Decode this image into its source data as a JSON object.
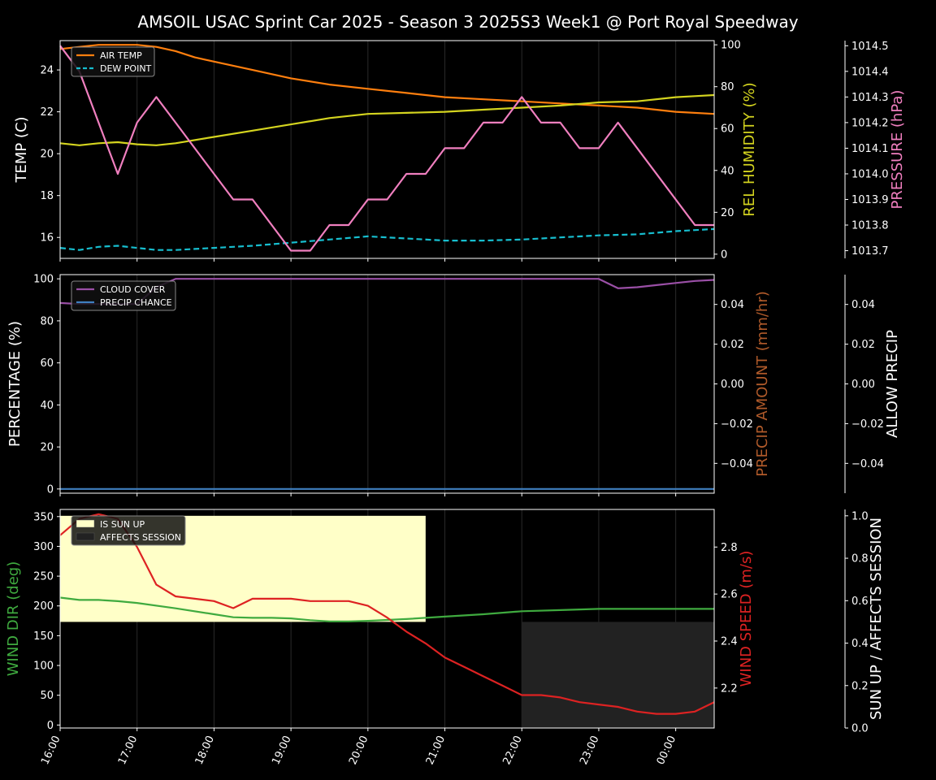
{
  "title": "AMSOIL USAC Sprint Car 2025 - Season 3 2025S3 Week1 @ Port Royal Speedway",
  "colors": {
    "background": "#000000",
    "axis": "#ffffff",
    "air_temp": "#ff7f0e",
    "dew_point": "#17becf",
    "humidity": "#d4d41f",
    "pressure": "#f07fbf",
    "cloud_cover": "#9a4fa6",
    "precip_chance": "#3f7fc0",
    "precip_amount_label": "#b05a2a",
    "wind_dir": "#3faa3f",
    "wind_speed": "#dd2222",
    "sun_up": "#ffffc8",
    "affects_session": "#222222"
  },
  "chart_data": [
    {
      "type": "line",
      "panel": "temperature",
      "x_ticks": [
        "16:00",
        "17:00",
        "18:00",
        "19:00",
        "20:00",
        "21:00",
        "22:00",
        "23:00",
        "00:00"
      ],
      "x_range": [
        0,
        8.5
      ],
      "y_left": {
        "label": "TEMP (C)",
        "range": [
          15,
          25.4
        ],
        "ticks": [
          16,
          18,
          20,
          22,
          24
        ]
      },
      "y_right": {
        "label": "REL HUMIDITY (%)",
        "range": [
          -2,
          102
        ],
        "ticks": [
          0,
          20,
          40,
          60,
          80,
          100
        ]
      },
      "y_right2": {
        "label": "PRESSURE (hPa)",
        "range": [
          1013.67,
          1014.52
        ],
        "ticks": [
          "1013.7",
          "1013.8",
          "1013.9",
          "1014.0",
          "1014.1",
          "1014.2",
          "1014.3",
          "1014.4",
          "1014.5"
        ]
      },
      "legend": {
        "position": "top-left",
        "entries": [
          "AIR TEMP",
          "DEW POINT"
        ]
      },
      "series": [
        {
          "name": "AIR TEMP",
          "axis": "left",
          "style": "solid",
          "color": "air_temp",
          "x": [
            0,
            0.25,
            0.5,
            0.75,
            1,
            1.25,
            1.5,
            1.75,
            2,
            2.5,
            3,
            3.5,
            4,
            4.5,
            5,
            5.5,
            6,
            6.5,
            7,
            7.5,
            8,
            8.5
          ],
          "y": [
            25.0,
            25.1,
            25.2,
            25.2,
            25.2,
            25.1,
            24.9,
            24.6,
            24.4,
            24.0,
            23.6,
            23.3,
            23.1,
            22.9,
            22.7,
            22.6,
            22.5,
            22.4,
            22.3,
            22.2,
            22.0,
            21.9
          ]
        },
        {
          "name": "DEW POINT",
          "axis": "left",
          "style": "dashed",
          "color": "dew_point",
          "x": [
            0,
            0.25,
            0.5,
            0.75,
            1,
            1.25,
            1.5,
            1.75,
            2,
            2.5,
            3,
            3.5,
            4,
            4.5,
            5,
            5.5,
            6,
            6.5,
            7,
            7.5,
            8,
            8.5
          ],
          "y": [
            15.5,
            15.4,
            15.55,
            15.6,
            15.5,
            15.4,
            15.4,
            15.45,
            15.5,
            15.6,
            15.75,
            15.9,
            16.05,
            15.95,
            15.85,
            15.85,
            15.9,
            16.0,
            16.1,
            16.15,
            16.3,
            16.4
          ]
        },
        {
          "name": "REL HUMIDITY",
          "axis": "right",
          "style": "solid",
          "color": "humidity",
          "x": [
            0,
            0.25,
            0.5,
            0.75,
            1,
            1.25,
            1.5,
            2,
            2.5,
            3,
            3.5,
            4,
            4.5,
            5,
            5.5,
            6,
            6.5,
            7,
            7.5,
            8,
            8.25,
            8.5
          ],
          "y": [
            53,
            52,
            53,
            53.5,
            52.5,
            52,
            53,
            56,
            59,
            62,
            65,
            67,
            67.5,
            68,
            69,
            70,
            71,
            72.5,
            73,
            75,
            75.5,
            76
          ]
        },
        {
          "name": "PRESSURE",
          "axis": "right2",
          "style": "solid",
          "color": "pressure",
          "x": [
            0,
            0.25,
            0.75,
            1,
            1.25,
            1.5,
            1.75,
            2,
            2.25,
            2.5,
            3,
            3.25,
            3.5,
            3.75,
            4,
            4.25,
            4.5,
            4.75,
            5,
            5.25,
            5.5,
            5.75,
            6,
            6.25,
            6.5,
            6.75,
            7,
            7.25,
            8.25,
            8.5
          ],
          "y": [
            1014.5,
            1014.4,
            1014.0,
            1014.2,
            1014.3,
            1014.2,
            1014.1,
            1014.0,
            1013.9,
            1013.9,
            1013.7,
            1013.7,
            1013.8,
            1013.8,
            1013.9,
            1013.9,
            1014.0,
            1014.0,
            1014.1,
            1014.1,
            1014.2,
            1014.2,
            1014.3,
            1014.2,
            1014.2,
            1014.1,
            1014.1,
            1014.2,
            1013.8,
            1013.8
          ]
        }
      ]
    },
    {
      "type": "line",
      "panel": "clouds-precip",
      "x_range": [
        0,
        8.5
      ],
      "y_left": {
        "label": "PERCENTAGE (%)",
        "range": [
          -2,
          102
        ],
        "ticks": [
          0,
          20,
          40,
          60,
          80,
          100
        ]
      },
      "y_right": {
        "label": "PRECIP AMOUNT (mm/hr)",
        "range": [
          -0.055,
          0.055
        ],
        "ticks": [
          "−0.04",
          "−0.02",
          "0.00",
          "0.02",
          "0.04"
        ]
      },
      "y_right2": {
        "label": "ALLOW PRECIP",
        "range": [
          -0.055,
          0.055
        ],
        "ticks": [
          "−0.04",
          "−0.02",
          "0.00",
          "0.02",
          "0.04"
        ]
      },
      "legend": {
        "position": "top-left",
        "entries": [
          "CLOUD COVER",
          "PRECIP CHANCE"
        ]
      },
      "series": [
        {
          "name": "CLOUD COVER",
          "axis": "left",
          "style": "solid",
          "color": "cloud_cover",
          "x": [
            0,
            0.25,
            0.5,
            0.75,
            1,
            1.25,
            1.5,
            2,
            3,
            4,
            5,
            6,
            6.5,
            7,
            7.25,
            7.5,
            7.75,
            8,
            8.25,
            8.5
          ],
          "y": [
            88.5,
            88,
            88,
            88,
            88,
            96,
            100,
            100,
            100,
            100,
            100,
            100,
            100,
            100,
            95.5,
            96,
            97,
            98,
            99,
            99.5
          ]
        },
        {
          "name": "PRECIP CHANCE",
          "axis": "left",
          "style": "solid",
          "color": "precip_chance",
          "x": [
            0,
            8.5
          ],
          "y": [
            0,
            0
          ]
        }
      ]
    },
    {
      "type": "line",
      "panel": "wind-sun",
      "x_range": [
        0,
        8.5
      ],
      "y_left": {
        "label": "WIND DIR (deg)",
        "range": [
          -5,
          362
        ],
        "ticks": [
          0,
          50,
          100,
          150,
          200,
          250,
          300,
          350
        ]
      },
      "y_right": {
        "label": "WIND SPEED (m/s)",
        "range": [
          2.03,
          2.96
        ],
        "ticks": [
          "2.2",
          "2.4",
          "2.6",
          "2.8"
        ]
      },
      "y_right2": {
        "label": "SUN UP / AFFECTS SESSION",
        "range": [
          0,
          1.03
        ],
        "ticks": [
          "0.0",
          "0.2",
          "0.4",
          "0.6",
          "0.8",
          "1.0"
        ]
      },
      "legend": {
        "position": "top-left",
        "entries": [
          "IS SUN UP",
          "AFFECTS SESSION"
        ]
      },
      "bands": [
        {
          "name": "IS SUN UP",
          "color": "sun_up",
          "x_start": 0,
          "x_end": 4.75,
          "y_from": 0.5,
          "y_to": 1.0
        },
        {
          "name": "AFFECTS SESSION",
          "color": "affects_session",
          "x_start": 6,
          "x_end": 8.5,
          "y_from": 0,
          "y_to": 0.5
        }
      ],
      "series": [
        {
          "name": "WIND DIR",
          "axis": "left",
          "style": "solid",
          "color": "wind_dir",
          "x": [
            0,
            0.25,
            0.5,
            0.75,
            1,
            1.5,
            2,
            2.25,
            2.5,
            2.75,
            3,
            3.25,
            3.5,
            3.75,
            4,
            4.5,
            5,
            5.5,
            6,
            6.5,
            7,
            7.5,
            8,
            8.5
          ],
          "y": [
            214,
            210,
            210,
            208,
            205,
            196,
            186,
            181,
            180,
            180,
            179,
            176,
            174,
            174,
            175,
            178,
            182,
            186,
            191,
            193,
            195,
            195,
            195,
            195
          ]
        },
        {
          "name": "WIND SPEED",
          "axis": "right",
          "style": "solid",
          "color": "wind_speed",
          "x": [
            0,
            0.25,
            0.5,
            0.75,
            1,
            1.25,
            1.5,
            1.75,
            2,
            2.25,
            2.5,
            2.75,
            3,
            3.25,
            3.5,
            3.75,
            4,
            4.25,
            4.5,
            4.75,
            5,
            5.25,
            5.5,
            5.75,
            6,
            6.25,
            6.5,
            6.75,
            7,
            7.25,
            7.5,
            7.75,
            8,
            8.25,
            8.5
          ],
          "y": [
            2.85,
            2.92,
            2.94,
            2.92,
            2.8,
            2.64,
            2.59,
            2.58,
            2.57,
            2.54,
            2.58,
            2.58,
            2.58,
            2.57,
            2.57,
            2.57,
            2.55,
            2.5,
            2.44,
            2.39,
            2.33,
            2.29,
            2.25,
            2.21,
            2.17,
            2.17,
            2.16,
            2.14,
            2.13,
            2.12,
            2.1,
            2.09,
            2.09,
            2.1,
            2.14
          ]
        }
      ]
    }
  ]
}
